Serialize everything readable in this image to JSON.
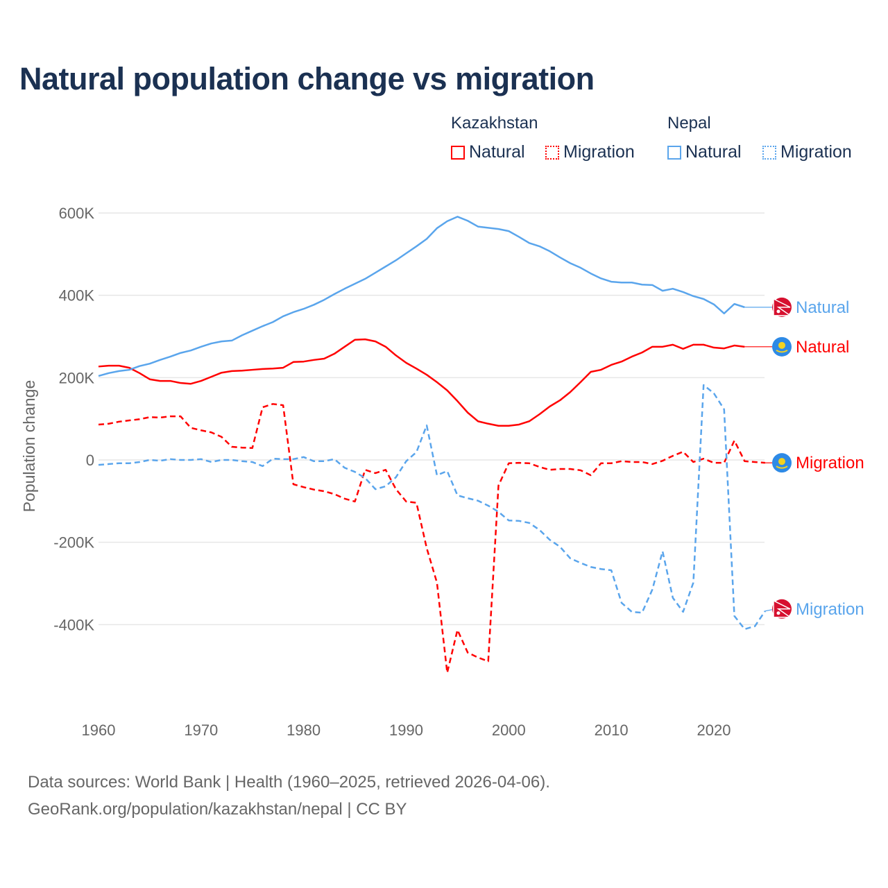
{
  "title": "Natural population change vs migration",
  "legend": {
    "groups": [
      {
        "name": "Kazakhstan",
        "color": "#ff0000",
        "items": [
          "Natural",
          "Migration"
        ]
      },
      {
        "name": "Nepal",
        "color": "#5aa5ec",
        "items": [
          "Natural",
          "Migration"
        ]
      }
    ]
  },
  "footer": {
    "line1": "Data sources: World Bank | Health (1960–2025, retrieved 2026-04-06).",
    "line2": "GeoRank.org/population/kazakhstan/nepal | CC BY"
  },
  "chart_data": {
    "type": "line",
    "title": "Natural population change vs migration",
    "xlabel": "",
    "ylabel": "Population change",
    "xlim": [
      1960,
      2025
    ],
    "ylim": [
      -600000,
      600000
    ],
    "x_ticks": [
      1960,
      1970,
      1980,
      1990,
      2000,
      2010,
      2020
    ],
    "y_ticks": [
      {
        "v": 600000,
        "label": "600K"
      },
      {
        "v": 400000,
        "label": "400K"
      },
      {
        "v": 200000,
        "label": "200K"
      },
      {
        "v": 0,
        "label": "0"
      },
      {
        "v": -200000,
        "label": "-200K"
      },
      {
        "v": -400000,
        "label": "-400K"
      }
    ],
    "grid": true,
    "legend_position": "top-right",
    "series": [
      {
        "name": "Kazakhstan Natural",
        "label": "Natural",
        "flag": "kazakhstan-flag",
        "color": "#ff0000",
        "dash": false,
        "start": 1960,
        "values": [
          227,
          229,
          229,
          224,
          211,
          196,
          192,
          192,
          187,
          185,
          192,
          202,
          212,
          216,
          217,
          219,
          221,
          222,
          224,
          238,
          239,
          243,
          246,
          258,
          275,
          292,
          293,
          288,
          275,
          254,
          236,
          222,
          207,
          189,
          169,
          143,
          115,
          94,
          88,
          83,
          83,
          86,
          94,
          111,
          130,
          145,
          165,
          189,
          214,
          219,
          231,
          239,
          251,
          261,
          275,
          275,
          280,
          270,
          280,
          280,
          273,
          271,
          278,
          275
        ]
      },
      {
        "name": "Kazakhstan Migration",
        "label": "Migration",
        "flag": "kazakhstan-flag",
        "color": "#ff0000",
        "dash": true,
        "start": 1960,
        "values": [
          86,
          88,
          93,
          96,
          99,
          104,
          103,
          106,
          106,
          78,
          72,
          67,
          56,
          32,
          30,
          29,
          128,
          136,
          133,
          -59,
          -66,
          -72,
          -76,
          -83,
          -94,
          -101,
          -24,
          -32,
          -24,
          -71,
          -101,
          -104,
          -214,
          -298,
          -517,
          -413,
          -468,
          -480,
          -489,
          -62,
          -8,
          -7,
          -8,
          -17,
          -24,
          -22,
          -22,
          -25,
          -37,
          -8,
          -8,
          -3,
          -5,
          -5,
          -10,
          -2,
          10,
          20,
          -5,
          3,
          -7,
          -7,
          47,
          -3,
          -5,
          -7
        ]
      },
      {
        "name": "Nepal Natural",
        "label": "Natural",
        "flag": "nepal-flag",
        "color": "#5aa5ec",
        "dash": false,
        "start": 1960,
        "values": [
          204,
          211,
          216,
          219,
          228,
          234,
          243,
          251,
          260,
          266,
          275,
          283,
          288,
          290,
          303,
          314,
          325,
          335,
          349,
          359,
          367,
          377,
          389,
          403,
          416,
          428,
          440,
          455,
          470,
          485,
          502,
          519,
          537,
          563,
          580,
          591,
          581,
          567,
          564,
          561,
          556,
          542,
          527,
          519,
          507,
          492,
          478,
          467,
          453,
          441,
          433,
          431,
          431,
          426,
          425,
          411,
          416,
          408,
          398,
          391,
          378,
          356,
          379,
          371
        ]
      },
      {
        "name": "Nepal Migration",
        "label": "Migration",
        "flag": "nepal-flag",
        "color": "#5aa5ec",
        "dash": true,
        "start": 1960,
        "values": [
          -12,
          -10,
          -8,
          -8,
          -5,
          0,
          -2,
          2,
          0,
          0,
          2,
          -5,
          0,
          0,
          -3,
          -5,
          -15,
          3,
          2,
          2,
          7,
          -3,
          -3,
          2,
          -19,
          -29,
          -44,
          -71,
          -64,
          -42,
          -3,
          19,
          84,
          -37,
          -27,
          -86,
          -93,
          -99,
          -111,
          -126,
          -147,
          -148,
          -153,
          -170,
          -194,
          -211,
          -239,
          -250,
          -260,
          -265,
          -268,
          -347,
          -369,
          -371,
          -315,
          -222,
          -335,
          -369,
          -298,
          182,
          162,
          123,
          -379,
          -411,
          -404,
          -367
        ]
      }
    ],
    "value_unit": "thousands"
  }
}
